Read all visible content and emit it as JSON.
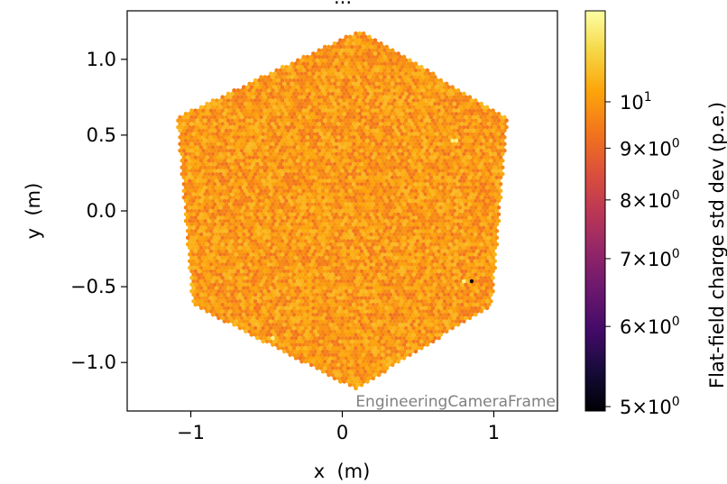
{
  "chart_data": {
    "type": "heatmap",
    "title": "...",
    "xlabel": "x  (m)",
    "ylabel": "y  (m)",
    "xlim": [
      -1.42,
      1.42
    ],
    "ylim": [
      -1.32,
      1.32
    ],
    "x_ticks": [
      -1,
      0,
      1
    ],
    "x_tick_labels": [
      "−1",
      "0",
      "1"
    ],
    "y_ticks": [
      1.0,
      0.5,
      0.0,
      -0.5,
      -1.0
    ],
    "y_tick_labels": [
      "1.0",
      "0.5",
      "0.0",
      "−0.5",
      "−1.0"
    ],
    "frame_annotation": "EngineeringCameraFrame",
    "camera_shape": "hexagon",
    "camera_vertices_m": [
      [
        0.11,
        1.19
      ],
      [
        1.09,
        0.62
      ],
      [
        0.99,
        -0.62
      ],
      [
        0.09,
        -1.18
      ],
      [
        -0.99,
        -0.62
      ],
      [
        -1.09,
        0.62
      ]
    ],
    "typical_value_pe": 10.0,
    "value_spread_pe": 0.7,
    "outlier_pixels": [
      {
        "x": 0.85,
        "y": -0.47,
        "value_pe": 5.0
      },
      {
        "x": 0.8,
        "y": -0.46,
        "value_pe": 12.0
      },
      {
        "x": -0.45,
        "y": -0.84,
        "value_pe": 12.0
      },
      {
        "x": 0.74,
        "y": 0.47,
        "value_pe": 11.8
      }
    ],
    "colorbar": {
      "label": "Flat-field charge std dev (p.e.)",
      "scale": "log",
      "colormap": "inferno",
      "vmin": 4.95,
      "vmax": 12.3,
      "ticks": [
        {
          "value": 5,
          "mantissa": "5",
          "exp": "0"
        },
        {
          "value": 6,
          "mantissa": "6",
          "exp": "0"
        },
        {
          "value": 7,
          "mantissa": "7",
          "exp": "0"
        },
        {
          "value": 8,
          "mantissa": "8",
          "exp": "0"
        },
        {
          "value": 9,
          "mantissa": "9",
          "exp": "0"
        },
        {
          "value": 10,
          "mantissa": "",
          "exp": "1"
        }
      ]
    }
  }
}
